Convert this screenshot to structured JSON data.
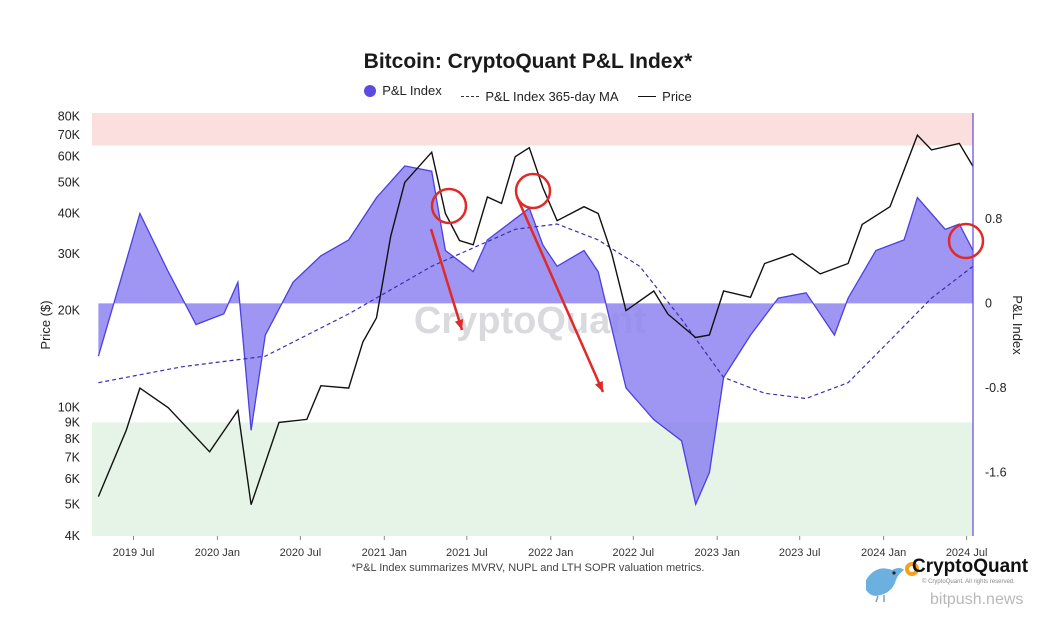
{
  "title": "Bitcoin: CryptoQuant P&L Index*",
  "legend": [
    {
      "label": "P&L Index",
      "color": "#5b4be0",
      "style": "dot"
    },
    {
      "label": "P&L Index 365-day MA",
      "color": "#3b2fb0",
      "style": "dashed"
    },
    {
      "label": "Price",
      "color": "#111111",
      "style": "solid"
    }
  ],
  "footnote": "*P&L Index summarizes MVRV, NUPL and LTH SOPR valuation metrics.",
  "watermark": "CryptoQuant",
  "brand": {
    "name": "CryptoQuant",
    "sub": "© CryptoQuant. All rights reserved.",
    "site": "bitpush.news"
  },
  "colors": {
    "index_fill": "#8e83f0",
    "index_line": "#4d3fe0",
    "ma": "#3b2fb0",
    "price": "#111111",
    "top_zone": "#fbdede",
    "bottom_zone": "#e5f4e6"
  },
  "chart_data": {
    "type": "line",
    "xlabel": "",
    "ylabel_left": "Price ($)",
    "ylabel_right": "P&L Index",
    "x_ticks": [
      "2019 Jul",
      "2020 Jan",
      "2020 Jul",
      "2021 Jan",
      "2021 Jul",
      "2022 Jan",
      "2022 Jul",
      "2023 Jan",
      "2023 Jul",
      "2024 Jan",
      "2024 Jul"
    ],
    "x_range": [
      "2019-04-01",
      "2024-07-15"
    ],
    "y_left": {
      "scale": "log",
      "range": [
        4000,
        82000
      ],
      "ticks": [
        "4K",
        "5K",
        "6K",
        "7K",
        "8K",
        "9K",
        "10K",
        "20K",
        "30K",
        "40K",
        "50K",
        "60K",
        "70K",
        "80K"
      ]
    },
    "y_right": {
      "range": [
        -2.2,
        1.8
      ],
      "ticks": [
        "-1.6",
        "-0.8",
        "0",
        "0.8"
      ]
    },
    "zones": [
      {
        "name": "overheated",
        "from_price": 65000,
        "to_price": 82000
      },
      {
        "name": "undervalued",
        "from_price": 4000,
        "to_price": 9000
      }
    ],
    "series": [
      {
        "name": "P&L Index",
        "x": [
          "2019-04",
          "2019-06",
          "2019-07",
          "2019-09",
          "2019-11",
          "2020-01",
          "2020-02",
          "2020-03",
          "2020-04",
          "2020-06",
          "2020-08",
          "2020-10",
          "2020-12",
          "2021-01",
          "2021-02",
          "2021-04",
          "2021-05",
          "2021-07",
          "2021-08",
          "2021-10",
          "2021-11",
          "2021-12",
          "2022-01",
          "2022-03",
          "2022-04",
          "2022-06",
          "2022-08",
          "2022-10",
          "2022-11",
          "2022-12",
          "2023-01",
          "2023-03",
          "2023-05",
          "2023-07",
          "2023-09",
          "2023-10",
          "2023-12",
          "2024-02",
          "2024-03",
          "2024-05",
          "2024-06",
          "2024-07"
        ],
        "values": [
          -0.5,
          0.4,
          0.85,
          0.3,
          -0.2,
          -0.1,
          0.2,
          -1.2,
          -0.3,
          0.2,
          0.45,
          0.6,
          1.0,
          1.15,
          1.3,
          1.25,
          0.5,
          0.3,
          0.6,
          0.8,
          0.9,
          0.55,
          0.35,
          0.5,
          0.3,
          -0.8,
          -1.1,
          -1.3,
          -1.9,
          -1.6,
          -0.7,
          -0.3,
          0.05,
          0.1,
          -0.3,
          0.05,
          0.5,
          0.6,
          1.0,
          0.7,
          0.75,
          0.5
        ]
      },
      {
        "name": "P&L Index 365-day MA",
        "x": [
          "2019-04",
          "2019-10",
          "2020-04",
          "2020-10",
          "2021-04",
          "2021-10",
          "2022-01",
          "2022-04",
          "2022-07",
          "2022-10",
          "2023-01",
          "2023-04",
          "2023-07",
          "2023-10",
          "2024-01",
          "2024-04",
          "2024-07"
        ],
        "values": [
          -0.75,
          -0.6,
          -0.5,
          -0.1,
          0.35,
          0.7,
          0.75,
          0.6,
          0.35,
          -0.15,
          -0.7,
          -0.85,
          -0.9,
          -0.75,
          -0.35,
          0.05,
          0.35
        ]
      },
      {
        "name": "Price",
        "x": [
          "2019-04",
          "2019-06",
          "2019-07",
          "2019-09",
          "2019-12",
          "2020-02",
          "2020-03",
          "2020-05",
          "2020-07",
          "2020-08",
          "2020-10",
          "2020-11",
          "2020-12",
          "2021-01",
          "2021-02",
          "2021-04",
          "2021-05",
          "2021-06",
          "2021-07",
          "2021-08",
          "2021-09",
          "2021-10",
          "2021-11",
          "2021-12",
          "2022-01",
          "2022-03",
          "2022-04",
          "2022-05",
          "2022-06",
          "2022-08",
          "2022-09",
          "2022-11",
          "2022-12",
          "2023-01",
          "2023-03",
          "2023-04",
          "2023-06",
          "2023-08",
          "2023-10",
          "2023-11",
          "2024-01",
          "2024-03",
          "2024-04",
          "2024-06",
          "2024-07"
        ],
        "values": [
          5300,
          8500,
          11500,
          10000,
          7300,
          9800,
          5000,
          9000,
          9200,
          11700,
          11500,
          16000,
          19000,
          34000,
          50000,
          62000,
          40000,
          33000,
          32000,
          45000,
          43000,
          60000,
          64000,
          48000,
          38000,
          42000,
          40000,
          30000,
          20000,
          23000,
          19500,
          16500,
          16800,
          23000,
          22000,
          28000,
          30000,
          26000,
          28000,
          37000,
          42000,
          70000,
          63000,
          66000,
          56000
        ]
      }
    ]
  }
}
